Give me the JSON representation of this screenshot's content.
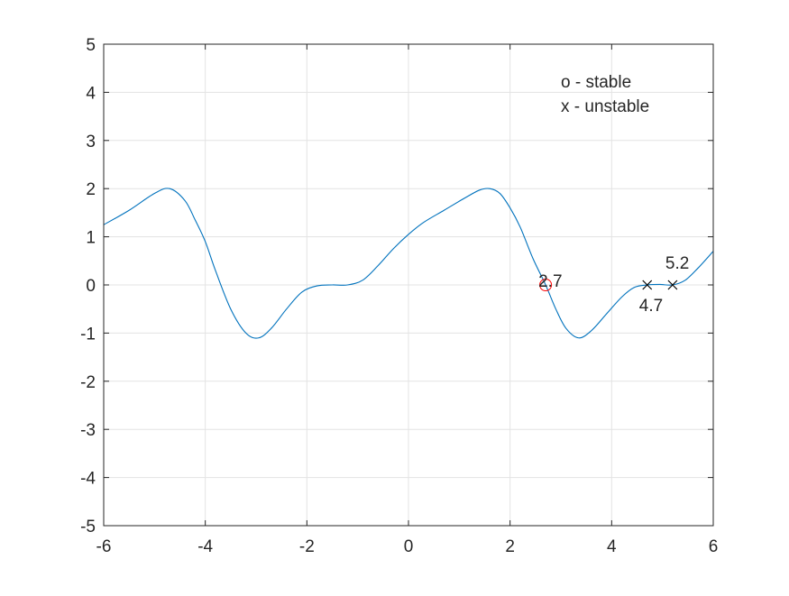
{
  "chart_data": {
    "type": "line",
    "title": "",
    "xlabel": "",
    "ylabel": "",
    "xlim": [
      -6,
      6
    ],
    "ylim": [
      -5,
      5
    ],
    "grid": true,
    "x_ticks": [
      "-6",
      "-4",
      "-2",
      "0",
      "2",
      "4",
      "6"
    ],
    "y_ticks": [
      "5",
      "4",
      "3",
      "2",
      "1",
      "0",
      "-1",
      "-2",
      "-3",
      "-4",
      "-5"
    ],
    "series": [
      {
        "color": "#0072BD",
        "points": [
          [
            -6.0,
            1.25
          ],
          [
            -5.5,
            1.55
          ],
          [
            -5.0,
            1.9
          ],
          [
            -4.7,
            2.0
          ],
          [
            -4.4,
            1.75
          ],
          [
            -4.2,
            1.35
          ],
          [
            -4.0,
            0.9
          ],
          [
            -3.8,
            0.3
          ],
          [
            -3.5,
            -0.5
          ],
          [
            -3.2,
            -1.0
          ],
          [
            -2.95,
            -1.1
          ],
          [
            -2.7,
            -0.9
          ],
          [
            -2.4,
            -0.5
          ],
          [
            -2.1,
            -0.15
          ],
          [
            -1.8,
            -0.02
          ],
          [
            -1.5,
            0.0
          ],
          [
            -1.2,
            0.0
          ],
          [
            -0.9,
            0.1
          ],
          [
            -0.6,
            0.4
          ],
          [
            -0.3,
            0.75
          ],
          [
            0.0,
            1.05
          ],
          [
            0.3,
            1.3
          ],
          [
            0.7,
            1.55
          ],
          [
            1.1,
            1.8
          ],
          [
            1.4,
            1.97
          ],
          [
            1.6,
            2.0
          ],
          [
            1.8,
            1.9
          ],
          [
            2.0,
            1.6
          ],
          [
            2.2,
            1.2
          ],
          [
            2.45,
            0.55
          ],
          [
            2.7,
            0.0
          ],
          [
            2.9,
            -0.5
          ],
          [
            3.1,
            -0.9
          ],
          [
            3.35,
            -1.1
          ],
          [
            3.6,
            -0.95
          ],
          [
            3.9,
            -0.6
          ],
          [
            4.2,
            -0.25
          ],
          [
            4.45,
            -0.05
          ],
          [
            4.7,
            0.0
          ],
          [
            4.95,
            0.01
          ],
          [
            5.2,
            0.0
          ],
          [
            5.45,
            0.1
          ],
          [
            5.7,
            0.35
          ],
          [
            6.0,
            0.7
          ]
        ]
      }
    ],
    "markers": [
      {
        "x": 2.7,
        "y": 0,
        "symbol": "o",
        "color": "#ff0000",
        "label": "2.7",
        "label_pos": "above"
      },
      {
        "x": 4.7,
        "y": 0,
        "symbol": "x",
        "color": "#000000",
        "label": "4.7",
        "label_pos": "below"
      },
      {
        "x": 5.2,
        "y": 0,
        "symbol": "x",
        "color": "#000000",
        "label": "5.2",
        "label_pos": "above"
      }
    ],
    "annotations": [
      "o - stable",
      "x - unstable"
    ]
  }
}
